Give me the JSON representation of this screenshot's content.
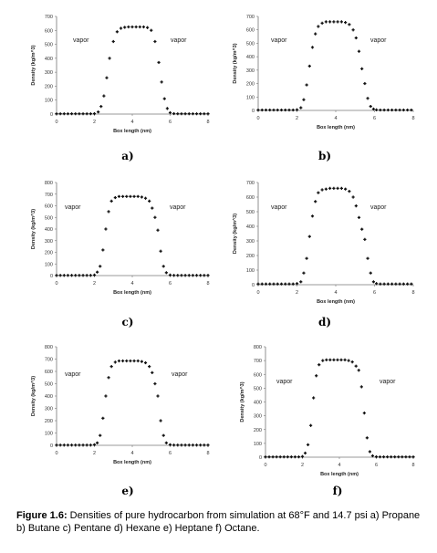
{
  "caption": {
    "label": "Figure 1.6:",
    "text": " Densities of pure hydrocarbon from simulation at 68°F and 14.7 psi a) Propane b) Butane c) Pentane d) Hexane e) Heptane f) Octane."
  },
  "chart_data": [
    {
      "type": "scatter",
      "panel_label": "a)",
      "xlabel": "Box length (nm)",
      "ylabel": "Density (kg/m^3)",
      "xlim": [
        0,
        8
      ],
      "ylim": [
        0,
        700
      ],
      "xticks": [
        "0",
        "2",
        "4",
        "6",
        "8"
      ],
      "yticks": [
        "0",
        "100",
        "200",
        "300",
        "400",
        "500",
        "600",
        "700"
      ],
      "annotations": [
        "vapor",
        "vapor"
      ],
      "x": [
        0.0,
        0.2,
        0.4,
        0.6,
        0.8,
        1.0,
        1.2,
        1.4,
        1.6,
        1.8,
        2.0,
        2.2,
        2.35,
        2.5,
        2.65,
        2.8,
        3.0,
        3.2,
        3.4,
        3.6,
        3.8,
        4.0,
        4.2,
        4.4,
        4.6,
        4.8,
        5.0,
        5.2,
        5.4,
        5.55,
        5.7,
        5.85,
        6.0,
        6.2,
        6.4,
        6.6,
        6.8,
        7.0,
        7.2,
        7.4,
        7.6,
        7.8,
        8.0
      ],
      "y": [
        2,
        2,
        2,
        2,
        2,
        2,
        2,
        2,
        2,
        2,
        3,
        15,
        55,
        130,
        260,
        400,
        520,
        590,
        615,
        622,
        625,
        625,
        625,
        625,
        625,
        620,
        600,
        520,
        370,
        230,
        110,
        40,
        10,
        3,
        2,
        2,
        2,
        2,
        2,
        2,
        2,
        2,
        2
      ]
    },
    {
      "type": "scatter",
      "panel_label": "b)",
      "xlabel": "Box length (nm)",
      "ylabel": "Density (kg/m^3)",
      "xlim": [
        0,
        8
      ],
      "ylim": [
        0,
        700
      ],
      "xticks": [
        "0",
        "2",
        "4",
        "6",
        "8"
      ],
      "yticks": [
        "0",
        "100",
        "200",
        "300",
        "400",
        "500",
        "600",
        "700"
      ],
      "annotations": [
        "vapor",
        "vapor"
      ],
      "x": [
        0.0,
        0.2,
        0.4,
        0.6,
        0.8,
        1.0,
        1.2,
        1.4,
        1.6,
        1.8,
        2.0,
        2.2,
        2.35,
        2.5,
        2.65,
        2.8,
        2.95,
        3.1,
        3.3,
        3.5,
        3.7,
        3.9,
        4.1,
        4.3,
        4.5,
        4.7,
        4.9,
        5.05,
        5.2,
        5.35,
        5.5,
        5.65,
        5.8,
        5.95,
        6.1,
        6.3,
        6.5,
        6.7,
        6.9,
        7.1,
        7.3,
        7.5,
        7.7,
        7.9
      ],
      "y": [
        3,
        3,
        3,
        3,
        3,
        3,
        3,
        3,
        3,
        3,
        5,
        20,
        80,
        190,
        330,
        470,
        570,
        625,
        650,
        660,
        660,
        660,
        660,
        660,
        655,
        640,
        600,
        540,
        440,
        310,
        200,
        90,
        30,
        10,
        4,
        3,
        3,
        3,
        3,
        3,
        3,
        3,
        3,
        3
      ]
    },
    {
      "type": "scatter",
      "panel_label": "c)",
      "xlabel": "Box length (nm)",
      "ylabel": "Density (kg/m^3)",
      "xlim": [
        0,
        8
      ],
      "ylim": [
        0,
        800
      ],
      "xticks": [
        "0",
        "2",
        "4",
        "6",
        "8"
      ],
      "yticks": [
        "0",
        "100",
        "200",
        "300",
        "400",
        "500",
        "600",
        "700",
        "800"
      ],
      "annotations": [
        "vapor",
        "vapor"
      ],
      "x": [
        0.0,
        0.2,
        0.4,
        0.6,
        0.8,
        1.0,
        1.2,
        1.4,
        1.6,
        1.8,
        2.0,
        2.15,
        2.3,
        2.45,
        2.6,
        2.75,
        2.9,
        3.1,
        3.3,
        3.5,
        3.7,
        3.9,
        4.1,
        4.3,
        4.5,
        4.7,
        4.9,
        5.05,
        5.2,
        5.35,
        5.5,
        5.65,
        5.8,
        6.0,
        6.2,
        6.4,
        6.6,
        6.8,
        7.0,
        7.2,
        7.4,
        7.6,
        7.8,
        8.0
      ],
      "y": [
        2,
        2,
        2,
        2,
        2,
        2,
        2,
        2,
        2,
        2,
        5,
        30,
        80,
        220,
        400,
        550,
        640,
        670,
        680,
        680,
        680,
        680,
        680,
        680,
        675,
        665,
        640,
        580,
        500,
        390,
        210,
        80,
        25,
        5,
        2,
        2,
        2,
        2,
        2,
        2,
        2,
        2,
        2,
        2
      ]
    },
    {
      "type": "scatter",
      "panel_label": "d)",
      "xlabel": "Box length (nm)",
      "ylabel": "Density (kg/m^3)",
      "xlim": [
        0,
        8
      ],
      "ylim": [
        0,
        700
      ],
      "xticks": [
        "0",
        "2",
        "4",
        "6",
        "8"
      ],
      "yticks": [
        "0",
        "100",
        "200",
        "300",
        "400",
        "500",
        "600",
        "700"
      ],
      "annotations": [
        "vapor",
        "vapor"
      ],
      "x": [
        0.0,
        0.2,
        0.4,
        0.6,
        0.8,
        1.0,
        1.2,
        1.4,
        1.6,
        1.8,
        2.0,
        2.2,
        2.35,
        2.5,
        2.65,
        2.8,
        2.95,
        3.1,
        3.3,
        3.5,
        3.7,
        3.9,
        4.1,
        4.3,
        4.5,
        4.7,
        4.9,
        5.05,
        5.2,
        5.35,
        5.5,
        5.65,
        5.8,
        5.95,
        6.1,
        6.3,
        6.5,
        6.7,
        6.9,
        7.1,
        7.3,
        7.5,
        7.7,
        7.9
      ],
      "y": [
        5,
        5,
        5,
        5,
        5,
        5,
        5,
        5,
        5,
        5,
        8,
        20,
        80,
        180,
        330,
        470,
        570,
        630,
        650,
        655,
        660,
        660,
        660,
        660,
        655,
        640,
        600,
        540,
        460,
        380,
        310,
        180,
        80,
        20,
        8,
        5,
        5,
        5,
        5,
        5,
        5,
        5,
        5,
        5
      ]
    },
    {
      "type": "scatter",
      "panel_label": "e)",
      "xlabel": "Box length (nm)",
      "ylabel": "Density (kg/m^3)",
      "xlim": [
        0,
        8
      ],
      "ylim": [
        0,
        800
      ],
      "xticks": [
        "0",
        "2",
        "4",
        "6",
        "8"
      ],
      "yticks": [
        "0",
        "100",
        "200",
        "300",
        "400",
        "500",
        "600",
        "700",
        "800"
      ],
      "annotations": [
        "vapor",
        "vapor"
      ],
      "x": [
        0.0,
        0.2,
        0.4,
        0.6,
        0.8,
        1.0,
        1.2,
        1.4,
        1.6,
        1.8,
        2.0,
        2.15,
        2.3,
        2.45,
        2.6,
        2.75,
        2.9,
        3.1,
        3.3,
        3.5,
        3.7,
        3.9,
        4.1,
        4.3,
        4.5,
        4.7,
        4.9,
        5.05,
        5.2,
        5.35,
        5.5,
        5.65,
        5.8,
        6.0,
        6.2,
        6.4,
        6.6,
        6.8,
        7.0,
        7.2,
        7.4,
        7.6,
        7.8,
        8.0
      ],
      "y": [
        2,
        2,
        2,
        2,
        2,
        2,
        2,
        2,
        2,
        2,
        5,
        20,
        80,
        220,
        400,
        550,
        640,
        675,
        685,
        685,
        685,
        685,
        685,
        685,
        680,
        670,
        640,
        590,
        500,
        400,
        200,
        80,
        20,
        5,
        2,
        2,
        2,
        2,
        2,
        2,
        2,
        2,
        2,
        2
      ]
    },
    {
      "type": "scatter",
      "panel_label": "f)",
      "xlabel": "Box length (nm)",
      "ylabel": "Density (kg/m^3)",
      "xlim": [
        0,
        8
      ],
      "ylim": [
        0,
        800
      ],
      "xticks": [
        "0",
        "2",
        "4",
        "6",
        "8"
      ],
      "yticks": [
        "0",
        "100",
        "200",
        "300",
        "400",
        "500",
        "600",
        "700",
        "800"
      ],
      "annotations": [
        "vapor",
        "vapor"
      ],
      "x": [
        0.0,
        0.2,
        0.4,
        0.6,
        0.8,
        1.0,
        1.2,
        1.4,
        1.6,
        1.8,
        2.0,
        2.15,
        2.3,
        2.45,
        2.6,
        2.75,
        2.9,
        3.1,
        3.3,
        3.5,
        3.7,
        3.9,
        4.1,
        4.3,
        4.5,
        4.7,
        4.9,
        5.05,
        5.2,
        5.35,
        5.5,
        5.65,
        5.8,
        6.0,
        6.2,
        6.4,
        6.6,
        6.8,
        7.0,
        7.2,
        7.4,
        7.6,
        7.8,
        8.0
      ],
      "y": [
        2,
        2,
        2,
        2,
        2,
        2,
        2,
        2,
        2,
        2,
        5,
        30,
        90,
        230,
        430,
        590,
        670,
        700,
        705,
        705,
        705,
        705,
        705,
        705,
        700,
        690,
        660,
        630,
        510,
        320,
        140,
        40,
        10,
        3,
        2,
        2,
        2,
        2,
        2,
        2,
        2,
        2,
        2,
        2
      ]
    }
  ]
}
